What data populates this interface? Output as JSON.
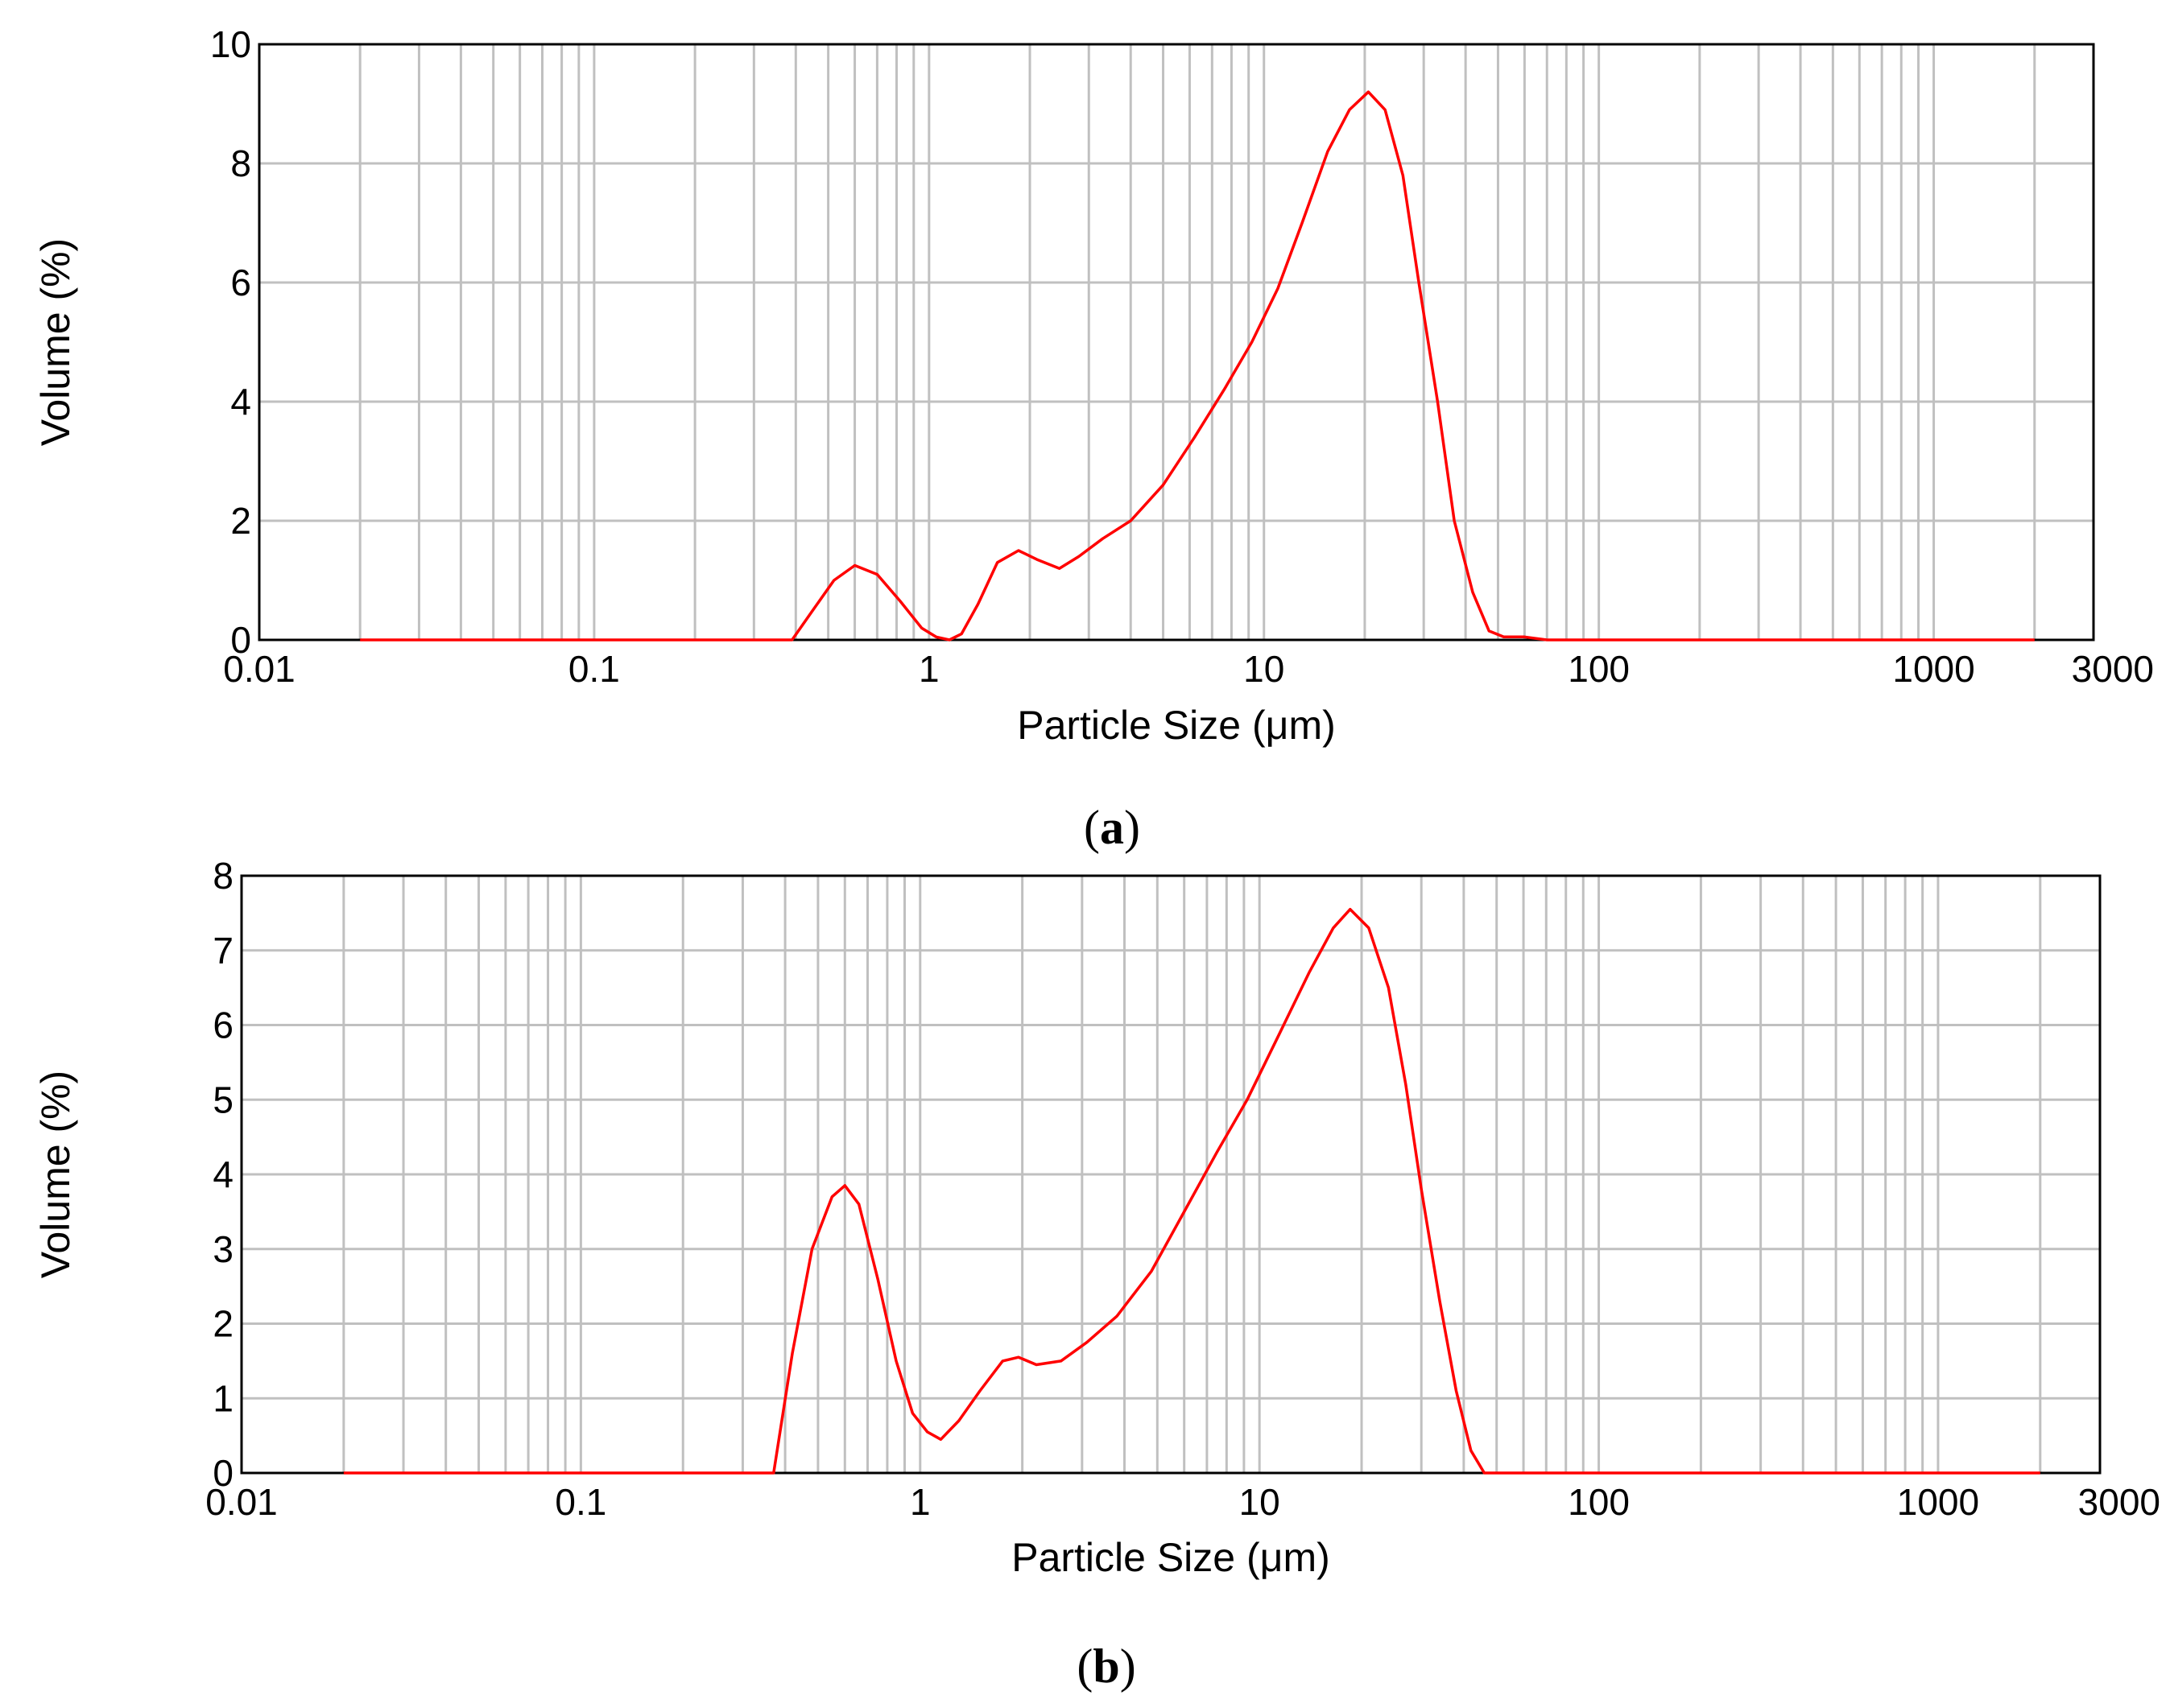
{
  "chart_data": [
    {
      "type": "line",
      "panel_label": "a",
      "xlabel": "Particle Size (μm)",
      "ylabel": "Volume (%)",
      "xscale": "log",
      "xlim": [
        0.01,
        3000
      ],
      "ylim": [
        0,
        10
      ],
      "xticks": [
        0.01,
        0.1,
        1,
        10,
        100,
        1000,
        3000
      ],
      "xtick_labels": [
        "0.01",
        "0.1",
        "1",
        "10",
        "100",
        "1000",
        "3000"
      ],
      "yticks": [
        0,
        2,
        4,
        6,
        8,
        10
      ],
      "ytick_labels": [
        "0",
        "2",
        "4",
        "6",
        "8",
        "10"
      ],
      "grid": true,
      "series": [
        {
          "color": "#ff0000",
          "x": [
            0.02,
            0.39,
            0.45,
            0.52,
            0.6,
            0.7,
            0.82,
            0.95,
            1.05,
            1.15,
            1.25,
            1.4,
            1.6,
            1.85,
            2.1,
            2.45,
            2.8,
            3.3,
            4.0,
            5.0,
            6.2,
            7.6,
            9.2,
            11.0,
            13.0,
            15.5,
            18.0,
            20.5,
            23.0,
            26.0,
            29.0,
            33.0,
            37.0,
            42.0,
            47.0,
            52.0,
            60.0,
            70.0,
            2000.0
          ],
          "y": [
            0,
            0,
            0.5,
            1.0,
            1.25,
            1.1,
            0.65,
            0.2,
            0.05,
            0.0,
            0.1,
            0.6,
            1.3,
            1.5,
            1.35,
            1.2,
            1.4,
            1.7,
            2.0,
            2.6,
            3.4,
            4.2,
            5.0,
            5.9,
            7.0,
            8.2,
            8.9,
            9.2,
            8.9,
            7.8,
            6.0,
            4.0,
            2.0,
            0.8,
            0.15,
            0.05,
            0.05,
            0,
            0
          ]
        }
      ]
    },
    {
      "type": "line",
      "panel_label": "b",
      "xlabel": "Particle Size (μm)",
      "ylabel": "Volume (%)",
      "xscale": "log",
      "xlim": [
        0.01,
        3000
      ],
      "ylim": [
        0,
        8
      ],
      "xticks": [
        0.01,
        0.1,
        1,
        10,
        100,
        1000,
        3000
      ],
      "xtick_labels": [
        "0.01",
        "0.1",
        "1",
        "10",
        "100",
        "1000",
        "3000"
      ],
      "yticks": [
        0,
        1,
        2,
        3,
        4,
        5,
        6,
        7,
        8
      ],
      "ytick_labels": [
        "0",
        "1",
        "2",
        "3",
        "4",
        "5",
        "6",
        "7",
        "8"
      ],
      "grid": true,
      "series": [
        {
          "color": "#ff0000",
          "x": [
            0.02,
            0.37,
            0.42,
            0.48,
            0.55,
            0.6,
            0.66,
            0.75,
            0.85,
            0.95,
            1.05,
            1.15,
            1.3,
            1.5,
            1.75,
            1.95,
            2.2,
            2.6,
            3.1,
            3.8,
            4.8,
            6.0,
            7.5,
            9.2,
            11.5,
            14.0,
            16.5,
            18.5,
            21.0,
            24.0,
            27.0,
            30.0,
            34.0,
            38.0,
            42.0,
            46.0,
            2000.0
          ],
          "y": [
            0,
            0,
            1.6,
            3.0,
            3.7,
            3.85,
            3.6,
            2.6,
            1.5,
            0.8,
            0.55,
            0.45,
            0.7,
            1.1,
            1.5,
            1.55,
            1.45,
            1.5,
            1.75,
            2.1,
            2.7,
            3.5,
            4.3,
            5.0,
            5.9,
            6.7,
            7.3,
            7.55,
            7.3,
            6.5,
            5.2,
            3.8,
            2.3,
            1.1,
            0.3,
            0,
            0
          ]
        }
      ]
    }
  ]
}
